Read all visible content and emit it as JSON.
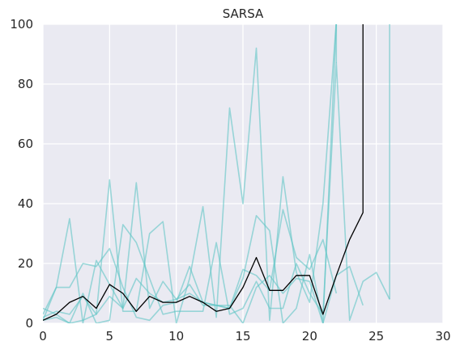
{
  "chart_data": {
    "type": "line",
    "title": "SARSA",
    "xlabel": "",
    "ylabel": "",
    "xlim": [
      0,
      30
    ],
    "ylim": [
      0,
      100
    ],
    "xticks": [
      0,
      5,
      10,
      15,
      20,
      25,
      30
    ],
    "yticks": [
      0,
      20,
      40,
      60,
      80,
      100
    ],
    "grid": true,
    "background": "#eaeaf2",
    "series": [
      {
        "role": "run",
        "color": "#5fc4c4",
        "x": [
          0,
          1,
          2,
          3,
          4,
          5,
          6,
          7,
          8,
          9,
          10,
          11,
          12,
          13,
          14,
          15,
          16,
          17,
          18,
          19,
          20,
          21,
          22
        ],
        "y": [
          1,
          12,
          35,
          0,
          21,
          13,
          5,
          47,
          5,
          14,
          8,
          10,
          7,
          6,
          5,
          15,
          36,
          31,
          0,
          5,
          23,
          0,
          101
        ]
      },
      {
        "role": "run",
        "color": "#5fc4c4",
        "x": [
          0,
          1,
          2,
          3,
          4,
          5,
          6,
          7,
          8,
          9,
          10,
          11,
          12,
          13,
          14,
          15,
          16,
          17,
          18,
          19,
          20,
          21,
          22
        ],
        "y": [
          5,
          3,
          0,
          1,
          3,
          48,
          4,
          4,
          30,
          34,
          0,
          15,
          39,
          2,
          72,
          40,
          92,
          1,
          49,
          17,
          7,
          40,
          101
        ]
      },
      {
        "role": "run",
        "color": "#5fc4c4",
        "x": [
          0,
          1,
          2,
          3,
          4,
          5,
          6,
          7,
          8,
          9,
          10,
          11,
          12,
          13,
          14,
          15,
          16,
          17,
          18,
          19,
          20,
          21,
          22
        ],
        "y": [
          3,
          12,
          12,
          20,
          19,
          25,
          12,
          2,
          1,
          6,
          7,
          19,
          7,
          6,
          5,
          18,
          16,
          11,
          38,
          22,
          18,
          28,
          10
        ]
      },
      {
        "role": "run",
        "color": "#5fc4c4",
        "x": [
          0,
          1,
          2,
          3,
          4,
          5,
          6,
          7,
          8,
          9,
          10,
          11,
          12,
          13,
          14,
          15,
          16,
          17,
          18,
          19,
          20,
          21,
          22,
          23,
          24
        ],
        "y": [
          2,
          4,
          3,
          9,
          3,
          9,
          5,
          15,
          10,
          7,
          8,
          13,
          6,
          6,
          6,
          0,
          12,
          16,
          10,
          15,
          14,
          0,
          16,
          19,
          6
        ]
      },
      {
        "role": "run",
        "color": "#5fc4c4",
        "x": [
          0,
          1,
          2,
          3,
          4,
          5,
          6,
          7,
          8,
          9,
          10,
          11,
          12,
          13,
          14,
          15,
          16,
          17,
          18,
          19,
          20,
          21,
          22,
          23,
          24,
          25,
          26
        ],
        "y": [
          1,
          2,
          0,
          10,
          0,
          1,
          33,
          27,
          15,
          3,
          4,
          4,
          4,
          27,
          3,
          5,
          14,
          5,
          5,
          20,
          10,
          3,
          87,
          1,
          14,
          17,
          8
        ]
      },
      {
        "role": "run",
        "color": "#5fc4c4",
        "x": [
          22,
          22
        ],
        "y": [
          87,
          101
        ]
      },
      {
        "role": "run",
        "color": "#5fc4c4",
        "x": [
          26,
          26
        ],
        "y": [
          8,
          101
        ]
      },
      {
        "role": "mean",
        "color": "#000000",
        "x": [
          0,
          1,
          2,
          3,
          4,
          5,
          6,
          7,
          8,
          9,
          10,
          11,
          12,
          13,
          14,
          15,
          16,
          17,
          18,
          19,
          20,
          21,
          22,
          23,
          24,
          24
        ],
        "y": [
          1,
          3,
          7,
          9,
          5,
          13,
          10,
          4,
          9,
          7,
          7,
          9,
          7,
          4,
          5,
          12,
          22,
          11,
          11,
          16,
          16,
          3,
          16,
          28,
          37,
          101
        ]
      }
    ]
  }
}
